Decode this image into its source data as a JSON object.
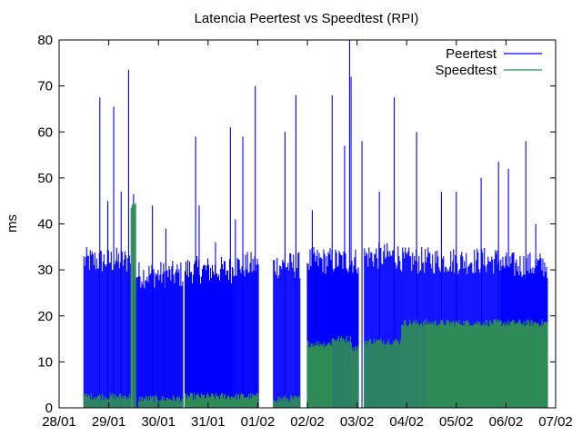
{
  "chart_data": {
    "type": "area",
    "title": "Latencia Peertest vs Speedtest (RPI)",
    "ylabel": "ms",
    "xlabel": "",
    "ylim": [
      0,
      80
    ],
    "xlim": [
      "28/01",
      "07/02"
    ],
    "grid": false,
    "legend_position": "top-right",
    "y_ticks": [
      "0",
      "10",
      "20",
      "30",
      "40",
      "50",
      "60",
      "70",
      "80"
    ],
    "x_ticks": [
      "28/01",
      "29/01",
      "30/01",
      "31/01",
      "01/02",
      "02/02",
      "03/02",
      "04/02",
      "05/02",
      "06/02",
      "07/02"
    ],
    "series": [
      {
        "name": "Peertest",
        "color": "#0000ff",
        "baseline_segments": [
          {
            "start": 0.5,
            "end": 1.45,
            "level": 33
          },
          {
            "start": 1.5,
            "end": 2.5,
            "level": 30
          },
          {
            "start": 2.5,
            "end": 3.5,
            "level": 31
          },
          {
            "start": 3.5,
            "end": 4.02,
            "level": 32
          },
          {
            "start": 4.3,
            "end": 4.85,
            "level": 32
          },
          {
            "start": 5.0,
            "end": 6.03,
            "level": 33
          },
          {
            "start": 6.15,
            "end": 6.9,
            "level": 34
          },
          {
            "start": 6.9,
            "end": 8.9,
            "level": 33
          },
          {
            "start": 8.9,
            "end": 9.85,
            "level": 32
          }
        ],
        "gaps": [
          [
            4.02,
            4.3
          ],
          [
            4.85,
            5.0
          ],
          [
            6.03,
            6.15
          ],
          [
            1.45,
            1.5
          ],
          [
            2.5,
            2.52
          ]
        ],
        "spikes": [
          {
            "x": 0.82,
            "y": 67.5
          },
          {
            "x": 1.1,
            "y": 65.5
          },
          {
            "x": 0.98,
            "y": 45
          },
          {
            "x": 1.25,
            "y": 47
          },
          {
            "x": 1.4,
            "y": 73.5
          },
          {
            "x": 1.5,
            "y": 46.5
          },
          {
            "x": 1.88,
            "y": 44
          },
          {
            "x": 2.15,
            "y": 39
          },
          {
            "x": 2.75,
            "y": 59
          },
          {
            "x": 2.82,
            "y": 44
          },
          {
            "x": 3.15,
            "y": 36
          },
          {
            "x": 3.45,
            "y": 61
          },
          {
            "x": 3.7,
            "y": 59
          },
          {
            "x": 3.55,
            "y": 41
          },
          {
            "x": 3.95,
            "y": 70
          },
          {
            "x": 4.55,
            "y": 60
          },
          {
            "x": 4.77,
            "y": 68
          },
          {
            "x": 5.1,
            "y": 43
          },
          {
            "x": 5.5,
            "y": 68
          },
          {
            "x": 5.75,
            "y": 57
          },
          {
            "x": 5.85,
            "y": 80
          },
          {
            "x": 5.88,
            "y": 72
          },
          {
            "x": 6.1,
            "y": 58
          },
          {
            "x": 6.75,
            "y": 67.5
          },
          {
            "x": 6.45,
            "y": 47
          },
          {
            "x": 7.2,
            "y": 60
          },
          {
            "x": 7.7,
            "y": 47
          },
          {
            "x": 8.0,
            "y": 47
          },
          {
            "x": 8.5,
            "y": 50
          },
          {
            "x": 8.85,
            "y": 53.5
          },
          {
            "x": 9.05,
            "y": 52
          },
          {
            "x": 9.4,
            "y": 58
          },
          {
            "x": 9.6,
            "y": 40
          }
        ]
      },
      {
        "name": "Speedtest",
        "color": "#2e8b57",
        "segments": [
          {
            "start": 0.5,
            "end": 1.45,
            "level": 2.5
          },
          {
            "start": 1.45,
            "end": 1.55,
            "level": 44
          },
          {
            "start": 1.6,
            "end": 2.5,
            "level": 2.0
          },
          {
            "start": 2.5,
            "end": 4.02,
            "level": 2.5
          },
          {
            "start": 4.3,
            "end": 4.85,
            "level": 2.0
          },
          {
            "start": 5.0,
            "end": 5.5,
            "level": 14
          },
          {
            "start": 5.5,
            "end": 5.9,
            "level": 15
          },
          {
            "start": 5.9,
            "end": 6.03,
            "level": 13
          },
          {
            "start": 6.15,
            "end": 6.9,
            "level": 14.5
          },
          {
            "start": 6.9,
            "end": 7.4,
            "level": 18.5
          },
          {
            "start": 7.4,
            "end": 9.85,
            "level": 18.5
          }
        ],
        "gaps": [
          [
            4.02,
            4.3
          ],
          [
            4.85,
            5.0
          ],
          [
            6.03,
            6.15
          ],
          [
            2.5,
            2.52
          ]
        ]
      }
    ]
  }
}
